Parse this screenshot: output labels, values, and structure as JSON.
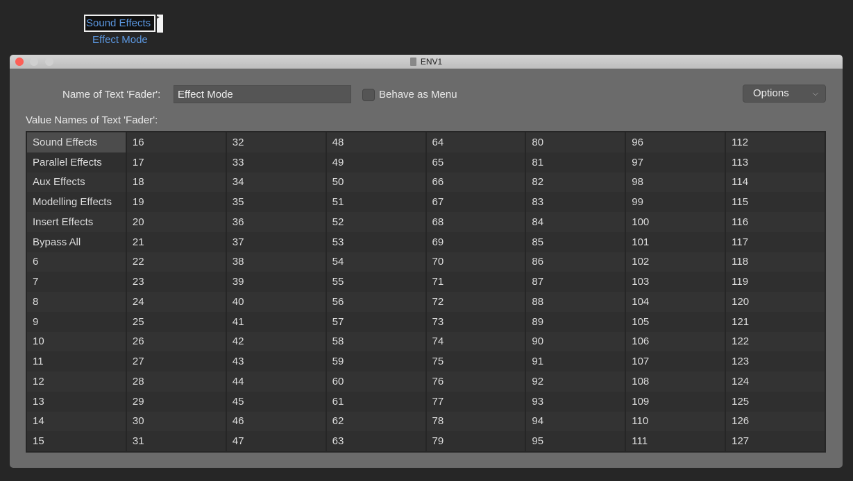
{
  "object": {
    "value": "Sound Effects",
    "label": "Effect Mode"
  },
  "window": {
    "title": "ENV1"
  },
  "form": {
    "name_label": "Name of Text 'Fader':",
    "name_value": "Effect Mode",
    "behave_label": "Behave as Menu",
    "behave_checked": false,
    "options_label": "Options",
    "values_label": "Value Names of Text 'Fader':"
  },
  "selected_cell": "Sound Effects",
  "columns": [
    [
      "Sound Effects",
      "Parallel Effects",
      "Aux Effects",
      "Modelling Effects",
      "Insert Effects",
      "Bypass All",
      "6",
      "7",
      "8",
      "9",
      "10",
      "11",
      "12",
      "13",
      "14",
      "15"
    ],
    [
      "16",
      "17",
      "18",
      "19",
      "20",
      "21",
      "22",
      "23",
      "24",
      "25",
      "26",
      "27",
      "28",
      "29",
      "30",
      "31"
    ],
    [
      "32",
      "33",
      "34",
      "35",
      "36",
      "37",
      "38",
      "39",
      "40",
      "41",
      "42",
      "43",
      "44",
      "45",
      "46",
      "47"
    ],
    [
      "48",
      "49",
      "50",
      "51",
      "52",
      "53",
      "54",
      "55",
      "56",
      "57",
      "58",
      "59",
      "60",
      "61",
      "62",
      "63"
    ],
    [
      "64",
      "65",
      "66",
      "67",
      "68",
      "69",
      "70",
      "71",
      "72",
      "73",
      "74",
      "75",
      "76",
      "77",
      "78",
      "79"
    ],
    [
      "80",
      "81",
      "82",
      "83",
      "84",
      "85",
      "86",
      "87",
      "88",
      "89",
      "90",
      "91",
      "92",
      "93",
      "94",
      "95"
    ],
    [
      "96",
      "97",
      "98",
      "99",
      "100",
      "101",
      "102",
      "103",
      "104",
      "105",
      "106",
      "107",
      "108",
      "109",
      "110",
      "111"
    ],
    [
      "112",
      "113",
      "114",
      "115",
      "116",
      "117",
      "118",
      "119",
      "120",
      "121",
      "122",
      "123",
      "124",
      "125",
      "126",
      "127"
    ]
  ]
}
